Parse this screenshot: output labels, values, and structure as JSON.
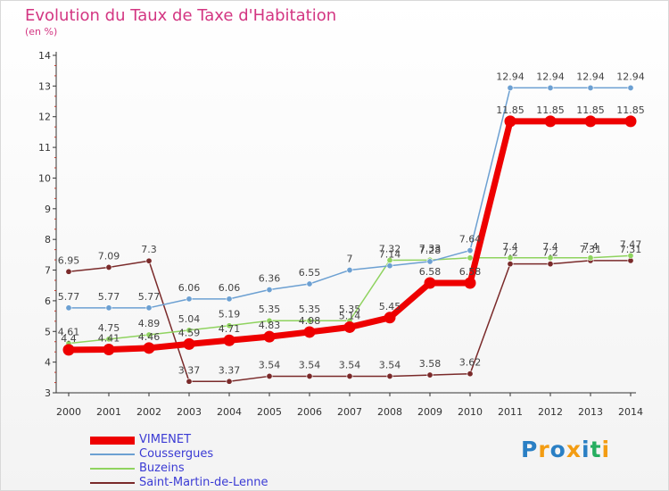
{
  "title": "Evolution du Taux de Taxe d'Habitation",
  "unit_label": "(en %)",
  "logo_text": "Proxiti",
  "colors": {
    "title": "#d33682",
    "axis": "#333333",
    "legend_text": "#3b3bd4",
    "logo": [
      "#2a7fc4",
      "#f39c12",
      "#2a7fc4",
      "#f39c12",
      "#2a7fc4",
      "#27ae60",
      "#f39c12"
    ]
  },
  "chart_data": {
    "type": "line",
    "title": "Evolution du Taux de Taxe d'Habitation",
    "ylabel": "(en %)",
    "xlabel": "",
    "x": [
      "2000",
      "2001",
      "2002",
      "2003",
      "2004",
      "2005",
      "2006",
      "2007",
      "2008",
      "2009",
      "2010",
      "2011",
      "2012",
      "2013",
      "2014"
    ],
    "ylim": [
      3,
      14
    ],
    "yticks": [
      "3",
      "4",
      "5",
      "6",
      "7",
      "8",
      "9",
      "10",
      "11",
      "12",
      "13",
      "14"
    ],
    "grid": false,
    "legend_position": "bottom-left",
    "series": [
      {
        "name": "VIMENET",
        "color": "#ee0000",
        "values": [
          4.4,
          4.41,
          4.46,
          4.59,
          4.71,
          4.83,
          4.98,
          5.14,
          5.45,
          6.58,
          6.58,
          11.85,
          11.85,
          11.85,
          11.85
        ],
        "labels": [
          "4.4",
          "4.41",
          "4.46",
          "4.59",
          "4.71",
          "4.83",
          "4.98",
          "5.14",
          "5.45",
          "6.58",
          "6.58",
          "11.85",
          "11.85",
          "11.85",
          "11.85"
        ]
      },
      {
        "name": "Coussergues",
        "color": "#6ca0d2",
        "values": [
          5.77,
          5.77,
          5.77,
          6.06,
          6.06,
          6.36,
          6.55,
          7,
          7.14,
          7.28,
          7.64,
          12.94,
          12.94,
          12.94,
          12.94
        ],
        "labels": [
          "5.77",
          "5.77",
          "5.77",
          "6.06",
          "6.06",
          "6.36",
          "6.55",
          "7",
          "7.14",
          "7.28",
          "7.64",
          "12.94",
          "12.94",
          "12.94",
          "12.94"
        ]
      },
      {
        "name": "Buzeins",
        "color": "#8fd35f",
        "values": [
          4.61,
          4.75,
          4.89,
          5.04,
          5.19,
          5.35,
          5.35,
          5.35,
          7.32,
          7.33,
          7.4,
          7.4,
          7.4,
          7.4,
          7.47
        ],
        "labels": [
          "4.61",
          "4.75",
          "4.89",
          "5.04",
          "5.19",
          "5.35",
          "5.35",
          "5.35",
          "7.32",
          "7.33",
          "",
          "7.4",
          "7.4",
          "7.4",
          "7.47"
        ]
      },
      {
        "name": "Saint-Martin-de-Lenne",
        "color": "#7a2a2a",
        "values": [
          6.95,
          7.09,
          7.3,
          3.37,
          3.37,
          3.54,
          3.54,
          3.54,
          3.54,
          3.58,
          3.62,
          7.2,
          7.2,
          7.31,
          7.31
        ],
        "labels": [
          "6.95",
          "7.09",
          "7.3",
          "3.37",
          "3.37",
          "3.54",
          "3.54",
          "3.54",
          "3.54",
          "3.58",
          "3.62",
          "7.2",
          "7.2",
          "7.31",
          "7.31"
        ]
      }
    ]
  }
}
